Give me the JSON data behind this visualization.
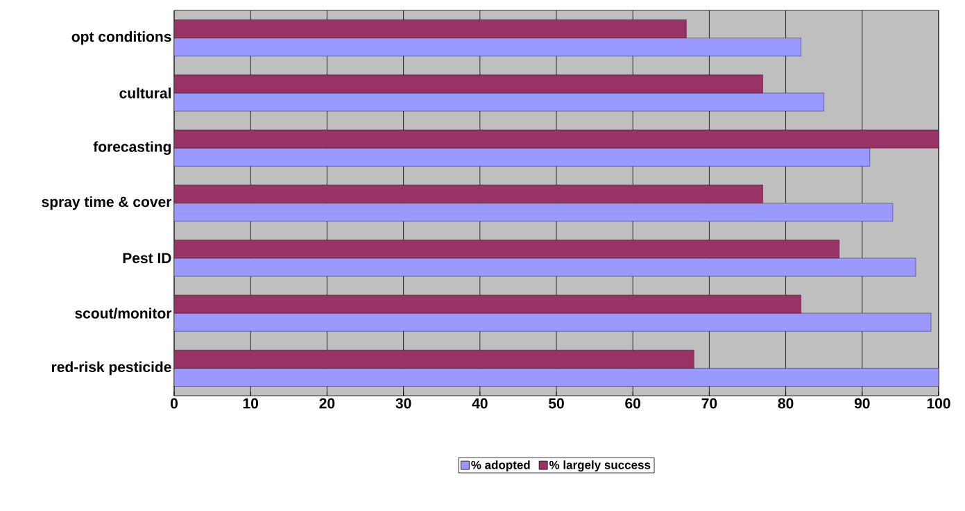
{
  "chart_data": {
    "type": "bar",
    "orientation": "horizontal",
    "categories": [
      "opt conditions",
      "cultural",
      "forecasting",
      "spray time & cover",
      "Pest ID",
      "scout/monitor",
      "red-risk pesticide"
    ],
    "series": [
      {
        "name": "% adopted",
        "color": "#9999ff",
        "values": [
          82,
          85,
          91,
          94,
          97,
          99,
          100
        ]
      },
      {
        "name": "% largely success",
        "color": "#993366",
        "values": [
          67,
          77,
          100,
          77,
          87,
          82,
          68
        ]
      }
    ],
    "xlim": [
      0,
      100
    ],
    "xticks": [
      0,
      10,
      20,
      30,
      40,
      50,
      60,
      70,
      80,
      90,
      100
    ],
    "grid": "x",
    "legend": "bottom"
  }
}
